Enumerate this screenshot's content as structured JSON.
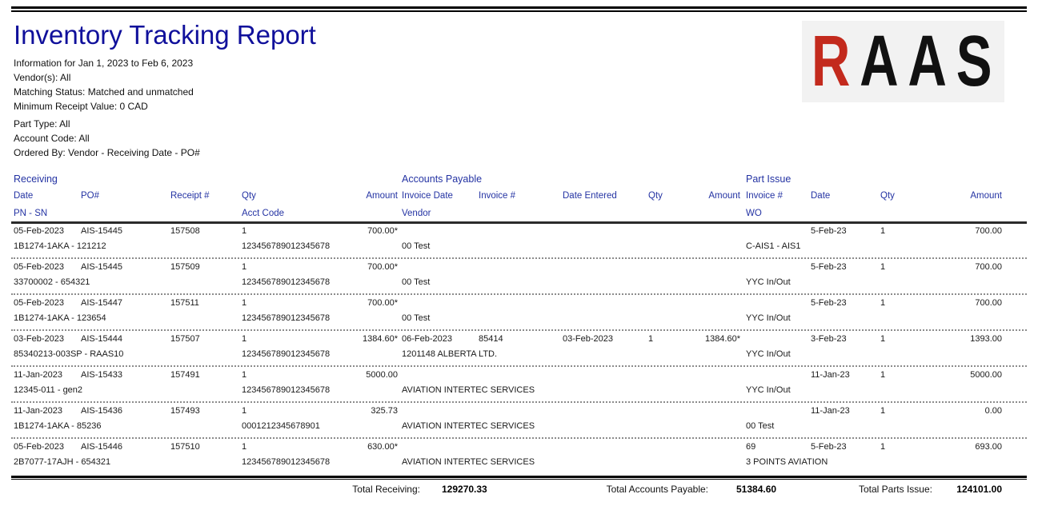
{
  "page": {
    "title": "Inventory Tracking Report",
    "meta": {
      "range": "Information for Jan  1, 2023 to Feb  6, 2023",
      "vendors": "Vendor(s): All",
      "matching": "Matching Status: Matched and unmatched",
      "min_receipt": "Minimum Receipt Value: 0 CAD",
      "part_type": "Part Type: All",
      "account_code": "Account Code: All",
      "ordered_by": "Ordered By: Vendor - Receiving Date - PO#"
    },
    "logo": {
      "letter_red": "R",
      "letters_black": "AAS"
    },
    "colors": {
      "title_blue": "#10109B",
      "header_blue": "#2433A3",
      "logo_red": "#C32A1D",
      "logo_black": "#111111",
      "logo_background": "#F2F2F2"
    }
  },
  "table": {
    "group_titles": {
      "receiving": "Receiving",
      "accounts_payable": "Accounts Payable",
      "part_issue": "Part Issue"
    },
    "headers": {
      "rcv_date": "Date",
      "rcv_po": "PO#",
      "rcv_receipt": "Receipt #",
      "rcv_qty": "Qty",
      "rcv_amount": "Amount",
      "rcv_pn_sn": "PN - SN",
      "rcv_acct": "Acct Code",
      "ap_invoice_date": "Invoice Date",
      "ap_invoice_num": "Invoice #",
      "ap_date_entered": "Date Entered",
      "ap_qty": "Qty",
      "ap_amount": "Amount",
      "ap_vendor": "Vendor",
      "pi_invoice_num": "Invoice #",
      "pi_date": "Date",
      "pi_qty": "Qty",
      "pi_amount": "Amount",
      "pi_wo": "WO"
    },
    "records": [
      {
        "date": "05-Feb-2023",
        "po": "AIS-15445",
        "receipt": "157508",
        "qty": "1",
        "amount": "700.00*",
        "pn_sn": "1B1274-1AKA - 121212",
        "acct": "123456789012345678",
        "ap_invoice_date": "",
        "ap_invoice_num": "",
        "ap_date_entered": "",
        "ap_qty": "",
        "ap_amount": "",
        "vendor": "00 Test",
        "pi_invoice_num": "",
        "pi_date": "5-Feb-23",
        "pi_qty": "1",
        "pi_amount": "700.00",
        "wo": "C-AIS1 - AIS1"
      },
      {
        "date": "05-Feb-2023",
        "po": "AIS-15445",
        "receipt": "157509",
        "qty": "1",
        "amount": "700.00*",
        "pn_sn": "33700002 - 654321",
        "acct": "123456789012345678",
        "ap_invoice_date": "",
        "ap_invoice_num": "",
        "ap_date_entered": "",
        "ap_qty": "",
        "ap_amount": "",
        "vendor": "00 Test",
        "pi_invoice_num": "",
        "pi_date": "5-Feb-23",
        "pi_qty": "1",
        "pi_amount": "700.00",
        "wo": "YYC In/Out"
      },
      {
        "date": "05-Feb-2023",
        "po": "AIS-15447",
        "receipt": "157511",
        "qty": "1",
        "amount": "700.00*",
        "pn_sn": "1B1274-1AKA - 123654",
        "acct": "123456789012345678",
        "ap_invoice_date": "",
        "ap_invoice_num": "",
        "ap_date_entered": "",
        "ap_qty": "",
        "ap_amount": "",
        "vendor": "00 Test",
        "pi_invoice_num": "",
        "pi_date": "5-Feb-23",
        "pi_qty": "1",
        "pi_amount": "700.00",
        "wo": "YYC In/Out"
      },
      {
        "date": "03-Feb-2023",
        "po": "AIS-15444",
        "receipt": "157507",
        "qty": "1",
        "amount": "1384.60*",
        "pn_sn": "85340213-003SP - RAAS10",
        "acct": "123456789012345678",
        "ap_invoice_date": "06-Feb-2023",
        "ap_invoice_num": "85414",
        "ap_date_entered": "03-Feb-2023",
        "ap_qty": "1",
        "ap_amount": "1384.60*",
        "vendor": "1201148 ALBERTA LTD.",
        "pi_invoice_num": "",
        "pi_date": "3-Feb-23",
        "pi_qty": "1",
        "pi_amount": "1393.00",
        "wo": "YYC In/Out"
      },
      {
        "date": "11-Jan-2023",
        "po": "AIS-15433",
        "receipt": "157491",
        "qty": "1",
        "amount": "5000.00",
        "pn_sn": "12345-011 - gen2",
        "acct": "123456789012345678",
        "ap_invoice_date": "",
        "ap_invoice_num": "",
        "ap_date_entered": "",
        "ap_qty": "",
        "ap_amount": "",
        "vendor": "AVIATION INTERTEC SERVICES",
        "pi_invoice_num": "",
        "pi_date": "11-Jan-23",
        "pi_qty": "1",
        "pi_amount": "5000.00",
        "wo": "YYC In/Out"
      },
      {
        "date": "11-Jan-2023",
        "po": "AIS-15436",
        "receipt": "157493",
        "qty": "1",
        "amount": "325.73",
        "pn_sn": "1B1274-1AKA - 85236",
        "acct": "0001212345678901",
        "ap_invoice_date": "",
        "ap_invoice_num": "",
        "ap_date_entered": "",
        "ap_qty": "",
        "ap_amount": "",
        "vendor": "AVIATION INTERTEC SERVICES",
        "pi_invoice_num": "",
        "pi_date": "11-Jan-23",
        "pi_qty": "1",
        "pi_amount": "0.00",
        "wo": "00 Test"
      },
      {
        "date": "05-Feb-2023",
        "po": "AIS-15446",
        "receipt": "157510",
        "qty": "1",
        "amount": "630.00*",
        "pn_sn": "2B7077-17AJH - 654321",
        "acct": "123456789012345678",
        "ap_invoice_date": "",
        "ap_invoice_num": "",
        "ap_date_entered": "",
        "ap_qty": "",
        "ap_amount": "",
        "vendor": "AVIATION INTERTEC SERVICES",
        "pi_invoice_num": "69",
        "pi_date": "5-Feb-23",
        "pi_qty": "1",
        "pi_amount": "693.00",
        "wo": "3 POINTS AVIATION"
      }
    ],
    "totals": {
      "receiving_label": "Total Receiving:",
      "receiving_value": "129270.33",
      "ap_label": "Total Accounts Payable:",
      "ap_value": "51384.60",
      "pi_label": "Total Parts Issue:",
      "pi_value": "124101.00"
    }
  }
}
